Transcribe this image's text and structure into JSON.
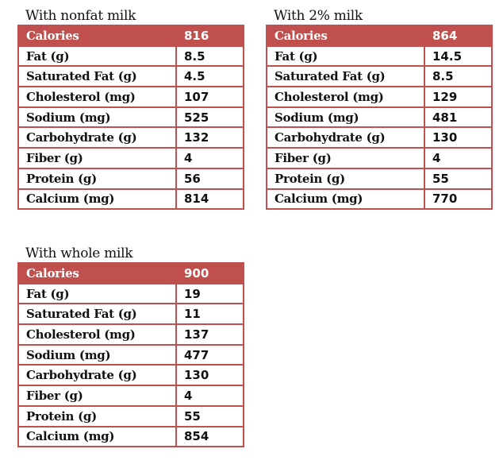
{
  "tables": [
    {
      "title": "With nonfat milk",
      "rows": [
        {
          "label": "Calories",
          "value": "816"
        },
        {
          "label": "Fat (g)",
          "value": "8.5"
        },
        {
          "label": "Saturated Fat (g)",
          "value": "4.5"
        },
        {
          "label": "Cholesterol (mg)",
          "value": "107"
        },
        {
          "label": "Sodium (mg)",
          "value": "525"
        },
        {
          "label": "Carbohydrate (g)",
          "value": "132"
        },
        {
          "label": "Fiber (g)",
          "value": "4"
        },
        {
          "label": "Protein (g)",
          "value": "56"
        },
        {
          "label": "Calcium (mg)",
          "value": "814"
        }
      ]
    },
    {
      "title": "With 2% milk",
      "rows": [
        {
          "label": "Calories",
          "value": "864"
        },
        {
          "label": "Fat (g)",
          "value": "14.5"
        },
        {
          "label": "Saturated Fat (g)",
          "value": "8.5"
        },
        {
          "label": "Cholesterol (mg)",
          "value": "129"
        },
        {
          "label": "Sodium (mg)",
          "value": "481"
        },
        {
          "label": "Carbohydrate (g)",
          "value": "130"
        },
        {
          "label": "Fiber (g)",
          "value": "4"
        },
        {
          "label": "Protein (g)",
          "value": "55"
        },
        {
          "label": "Calcium (mg)",
          "value": "770"
        }
      ]
    },
    {
      "title": "With whole milk",
      "rows": [
        {
          "label": "Calories",
          "value": "900"
        },
        {
          "label": "Fat (g)",
          "value": "19"
        },
        {
          "label": "Saturated Fat (g)",
          "value": "11"
        },
        {
          "label": "Cholesterol (mg)",
          "value": "137"
        },
        {
          "label": "Sodium (mg)",
          "value": "477"
        },
        {
          "label": "Carbohydrate (g)",
          "value": "130"
        },
        {
          "label": "Fiber (g)",
          "value": "4"
        },
        {
          "label": "Protein (g)",
          "value": "55"
        },
        {
          "label": "Calcium (mg)",
          "value": "854"
        }
      ]
    }
  ],
  "colors": {
    "header": "#c0504d"
  }
}
